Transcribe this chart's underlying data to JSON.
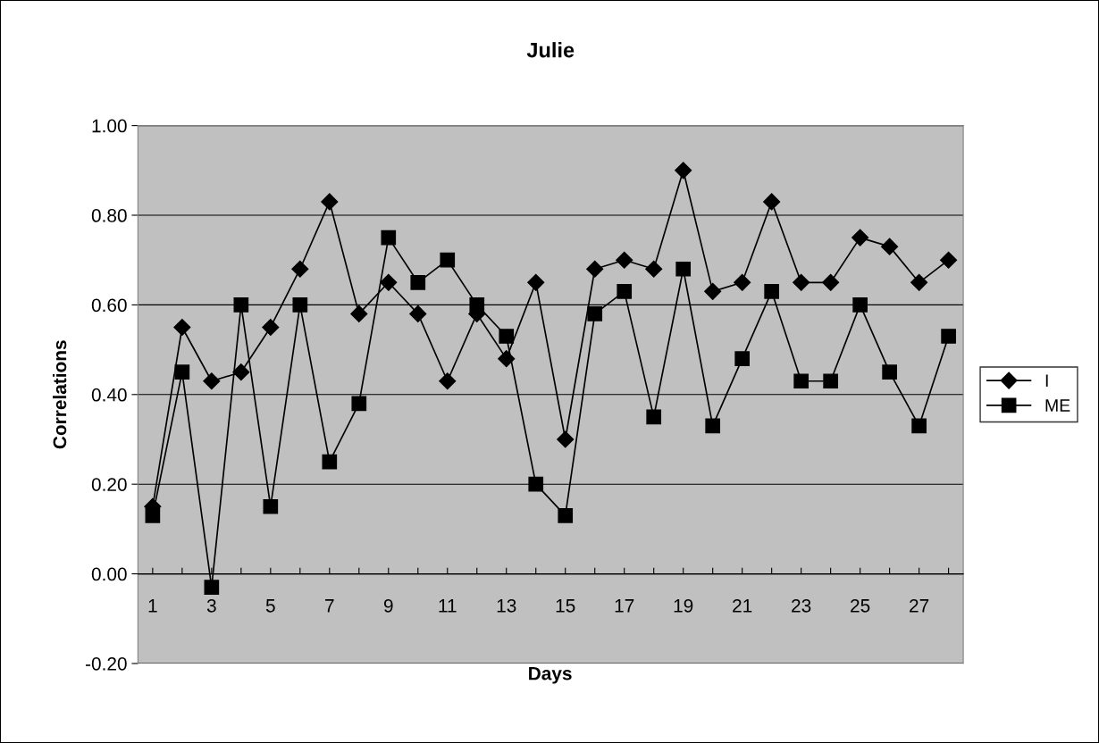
{
  "chart_data": {
    "type": "line",
    "title": "Julie",
    "xlabel": "Days",
    "ylabel": "Correlations",
    "categories": [
      "1",
      null,
      "3",
      null,
      "5",
      null,
      "7",
      null,
      "9",
      null,
      "11",
      null,
      "13",
      null,
      "15",
      null,
      "17",
      null,
      "19",
      null,
      "21",
      null,
      "23",
      null,
      "25",
      null,
      "27",
      null
    ],
    "series": [
      {
        "name": "I",
        "color": "#000000",
        "marker": "diamond",
        "values": [
          0.15,
          0.55,
          0.43,
          0.45,
          0.55,
          0.68,
          0.83,
          0.58,
          0.65,
          0.58,
          0.43,
          0.58,
          0.48,
          0.65,
          0.3,
          0.68,
          0.7,
          0.68,
          0.9,
          0.63,
          0.65,
          0.83,
          0.65,
          0.65,
          0.75,
          0.73,
          0.65,
          0.7
        ]
      },
      {
        "name": "ME",
        "color": "#000000",
        "marker": "square",
        "values": [
          0.13,
          0.45,
          -0.03,
          0.6,
          0.15,
          0.6,
          0.25,
          0.38,
          0.75,
          0.65,
          0.7,
          0.6,
          0.53,
          0.2,
          0.13,
          0.58,
          0.63,
          0.35,
          0.68,
          0.33,
          0.48,
          0.63,
          0.43,
          0.43,
          0.6,
          0.45,
          0.33,
          0.53
        ]
      }
    ],
    "ylim": [
      -0.2,
      1.0
    ],
    "yticks": [
      {
        "value": -0.2,
        "label": "-0.20"
      },
      {
        "value": 0,
        "label": "0.00"
      },
      {
        "value": 0.2,
        "label": "0.20"
      },
      {
        "value": 0.4,
        "label": "0.40"
      },
      {
        "value": 0.6,
        "label": "0.60"
      },
      {
        "value": 0.8,
        "label": "0.80"
      },
      {
        "value": 1.0,
        "label": "1.00"
      }
    ],
    "grid": "y",
    "legend": "right",
    "line_style": "solid"
  }
}
